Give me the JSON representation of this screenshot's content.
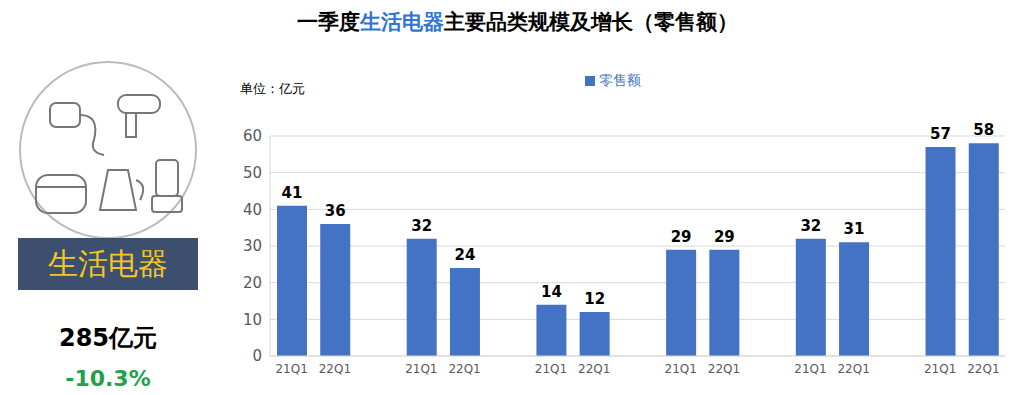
{
  "chart_data": {
    "type": "bar",
    "title": "一季度生活电器主要品类规模及增长（零售额）",
    "title_highlight": "生活电器",
    "y_unit_label": "单位：亿元",
    "summary": {
      "label": "生活电器",
      "total": "285亿元",
      "change": "-10.3%"
    },
    "categories": [
      "21Q1",
      "22Q1",
      null,
      "21Q1",
      "22Q1",
      null,
      "21Q1",
      "22Q1",
      null,
      "21Q1",
      "22Q1",
      null,
      "21Q1",
      "22Q1",
      null,
      "21Q1",
      "22Q1"
    ],
    "series": [
      {
        "name": "零售额",
        "color": "#4472c4",
        "values": [
          41,
          36,
          null,
          32,
          24,
          null,
          14,
          12,
          null,
          29,
          29,
          null,
          32,
          31,
          null,
          57,
          58
        ]
      }
    ],
    "ylim": [
      0,
      60
    ],
    "yticks": [
      0,
      10,
      20,
      30,
      40,
      50,
      60
    ],
    "grid": true,
    "legend": "top",
    "data_labels": true
  }
}
